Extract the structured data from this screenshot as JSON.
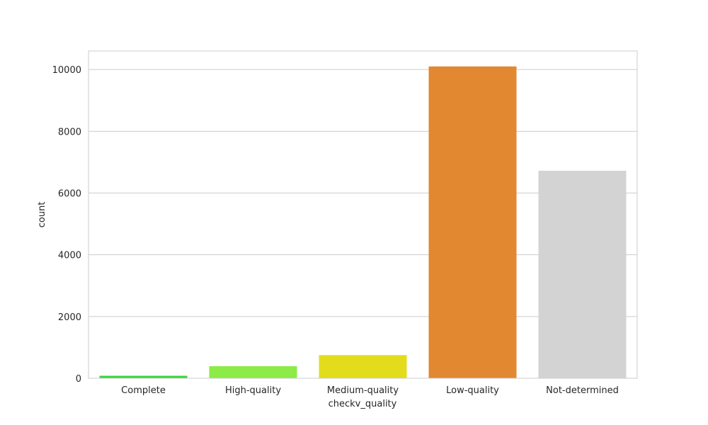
{
  "chart_data": {
    "type": "bar",
    "xlabel": "checkv_quality",
    "ylabel": "count",
    "categories": [
      "Complete",
      "High-quality",
      "Medium-quality",
      "Low-quality",
      "Not-determined"
    ],
    "values": [
      80,
      390,
      750,
      10100,
      6720
    ],
    "colors": [
      "#3bd23b",
      "#8ceb46",
      "#e3dc1c",
      "#e18831",
      "#d3d3d3"
    ],
    "ylim": [
      0,
      10600
    ],
    "yticks": [
      0,
      2000,
      4000,
      6000,
      8000,
      10000
    ],
    "ytick_labels": [
      "0",
      "2000",
      "4000",
      "6000",
      "8000",
      "10000"
    ],
    "grid": "horizontal",
    "legend": "none"
  }
}
